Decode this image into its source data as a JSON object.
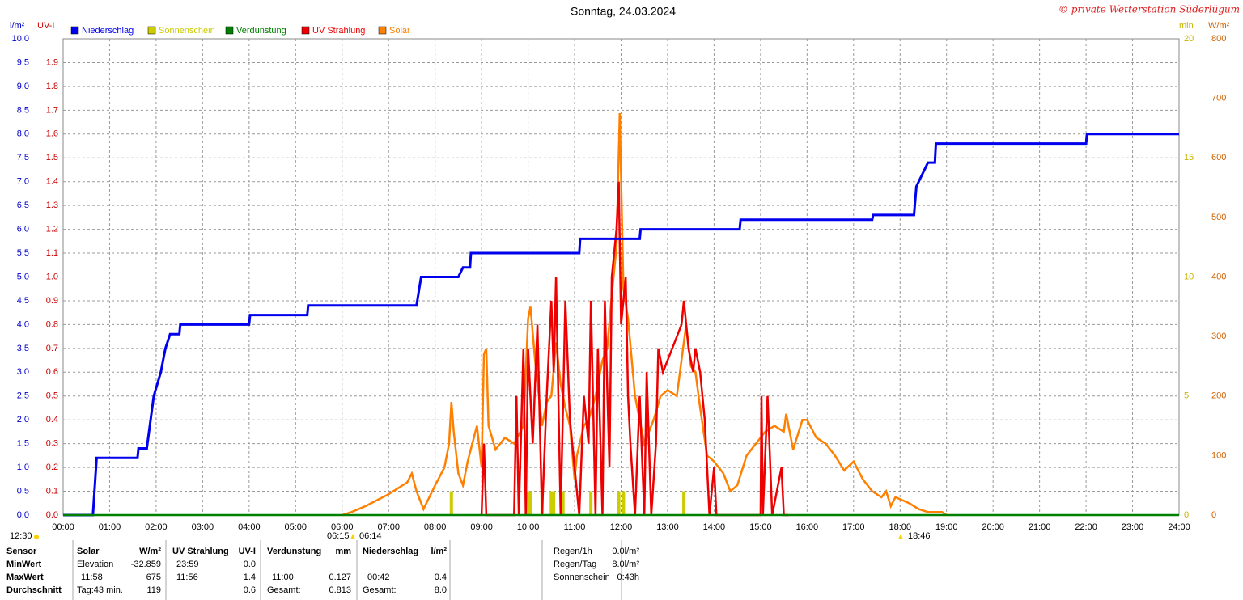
{
  "chart_data": {
    "type": "weather",
    "title": "Sonntag, 24.03.2024",
    "copyright": "© private Wetterstation Süderlügum",
    "xlim": [
      0,
      24
    ],
    "xticks": [
      {
        "value": 0,
        "label": "00:00"
      },
      {
        "value": 1,
        "label": "01:00"
      },
      {
        "value": 2,
        "label": "02:00"
      },
      {
        "value": 3,
        "label": "03:00"
      },
      {
        "value": 4,
        "label": "04:00"
      },
      {
        "value": 5,
        "label": "05:00"
      },
      {
        "value": 6,
        "label": "06:00"
      },
      {
        "value": 7,
        "label": "07:00"
      },
      {
        "value": 8,
        "label": "08:00"
      },
      {
        "value": 9,
        "label": "09:00"
      },
      {
        "value": 10,
        "label": "10:00"
      },
      {
        "value": 11,
        "label": "11:00"
      },
      {
        "value": 12,
        "label": "12:00"
      },
      {
        "value": 13,
        "label": "13:00"
      },
      {
        "value": 14,
        "label": "14:00"
      },
      {
        "value": 15,
        "label": "15:00"
      },
      {
        "value": 16,
        "label": "16:00"
      },
      {
        "value": 17,
        "label": "17:00"
      },
      {
        "value": 18,
        "label": "18:00"
      },
      {
        "value": 19,
        "label": "19:00"
      },
      {
        "value": 20,
        "label": "20:00"
      },
      {
        "value": 21,
        "label": "21:00"
      },
      {
        "value": 22,
        "label": "22:00"
      },
      {
        "value": 23,
        "label": "23:00"
      },
      {
        "value": 24,
        "label": "24:00"
      }
    ],
    "ylabel": "l/m²",
    "ylim": [
      0,
      10
    ],
    "yticks": [
      {
        "value": 0,
        "label": "0.0"
      },
      0.5,
      {
        "value": 1,
        "label": "1.0"
      },
      1.5,
      {
        "value": 2,
        "label": "2.0"
      },
      2.5,
      {
        "value": 3,
        "label": "3.0"
      },
      3.5,
      {
        "value": 4,
        "label": "4.0"
      },
      4.5,
      {
        "value": 5,
        "label": "5.0"
      },
      5.5,
      {
        "value": 6,
        "label": "6.0"
      },
      6.5,
      {
        "value": 7,
        "label": "7.0"
      },
      7.5,
      {
        "value": 8,
        "label": "8.0"
      },
      8.5,
      {
        "value": 9,
        "label": "9.0"
      },
      9.5,
      {
        "value": 10,
        "label": "10.0"
      }
    ],
    "uvlabel": "UV-I",
    "uvlim": [
      0,
      2
    ],
    "uvticks": [
      {
        "value": 0,
        "label": "0.0"
      },
      0.1,
      0.2,
      0.3,
      0.4,
      0.5,
      0.6,
      0.7,
      0.8,
      0.9,
      {
        "value": 1,
        "label": "1.0"
      },
      1.1,
      1.2,
      1.3,
      1.4,
      1.5,
      1.6,
      1.7,
      1.8,
      1.9
    ],
    "y2label": "min",
    "y2lim": [
      0,
      20
    ],
    "y2ticks": [
      0,
      5,
      10,
      15,
      20
    ],
    "y3label": "W/m²",
    "y3lim": [
      0,
      800
    ],
    "y3ticks": [
      0,
      100,
      200,
      300,
      400,
      500,
      600,
      700,
      800
    ],
    "grid": true,
    "series": [
      {
        "name": "Niederschlag",
        "color": "#0000ee",
        "axis": "y",
        "style": "line",
        "x": [
          0,
          0.64,
          0.72,
          1.6,
          1.62,
          1.78,
          1.8,
          1.95,
          2.1,
          2.2,
          2.3,
          2.5,
          2.52,
          4.0,
          4.02,
          5.25,
          5.27,
          7.6,
          7.7,
          8.5,
          8.6,
          8.75,
          8.77,
          11.1,
          11.12,
          12.4,
          12.42,
          14.55,
          14.57,
          17.4,
          17.42,
          18.3,
          18.35,
          18.5,
          18.6,
          18.75,
          18.77,
          22.0,
          22.02,
          24
        ],
        "values": [
          0,
          0,
          1.2,
          1.2,
          1.4,
          1.4,
          1.4,
          2.5,
          3.0,
          3.5,
          3.8,
          3.8,
          4.0,
          4.0,
          4.2,
          4.2,
          4.4,
          4.4,
          5.0,
          5.0,
          5.2,
          5.2,
          5.5,
          5.5,
          5.8,
          5.8,
          6.0,
          6.0,
          6.2,
          6.2,
          6.3,
          6.3,
          6.9,
          7.2,
          7.4,
          7.4,
          7.8,
          7.8,
          8.0,
          8.0
        ]
      },
      {
        "name": "Sonnenschein",
        "color": "#cccc00",
        "axis": "y2",
        "style": "bar",
        "x": [
          8.35,
          10.0,
          10.05,
          10.3,
          10.5,
          10.55,
          10.75,
          11.35,
          11.95,
          12.05,
          13.35
        ],
        "values": [
          1,
          1,
          1,
          1,
          1,
          1,
          1,
          1,
          1,
          1,
          1
        ]
      },
      {
        "name": "Verdunstung",
        "color": "#008000",
        "axis": "y",
        "style": "line",
        "x": [
          0,
          24
        ],
        "values": [
          0,
          0
        ]
      },
      {
        "name": "UV Strahlung",
        "color": "#ee0000",
        "axis": "uv",
        "style": "line",
        "x": [
          9.0,
          9.05,
          9.1,
          9.7,
          9.75,
          9.8,
          9.9,
          9.95,
          10.0,
          10.1,
          10.2,
          10.3,
          10.4,
          10.5,
          10.55,
          10.6,
          10.7,
          10.8,
          10.9,
          11.0,
          11.1,
          11.2,
          11.3,
          11.35,
          11.45,
          11.5,
          11.6,
          11.65,
          11.75,
          11.8,
          11.9,
          11.95,
          12.0,
          12.1,
          12.15,
          12.2,
          12.3,
          12.4,
          12.5,
          12.55,
          12.65,
          12.75,
          12.8,
          12.9,
          13.1,
          13.3,
          13.35,
          13.45,
          13.55,
          13.6,
          13.7,
          13.8,
          13.9,
          14.0,
          14.05,
          15.0,
          15.02,
          15.05,
          15.15,
          15.25,
          15.45,
          15.5,
          15.6
        ],
        "values": [
          0,
          0.3,
          0,
          0,
          0.5,
          0,
          0.7,
          0,
          0.7,
          0.3,
          0.8,
          0,
          0.5,
          0.9,
          0.6,
          1.0,
          0,
          0.9,
          0.4,
          0.2,
          0,
          0.5,
          0.3,
          0.9,
          0,
          0.7,
          0,
          0.9,
          0.2,
          1.0,
          1.2,
          1.4,
          0.8,
          1.0,
          0.5,
          0.3,
          0,
          0.5,
          0,
          0.6,
          0,
          0.3,
          0.7,
          0.6,
          0.7,
          0.8,
          0.9,
          0.7,
          0.6,
          0.7,
          0.6,
          0.4,
          0,
          0.2,
          0,
          0,
          0.5,
          0,
          0.5,
          0,
          0.2,
          0,
          0
        ]
      },
      {
        "name": "Solar",
        "color": "#ff8000",
        "axis": "y3",
        "style": "line",
        "x": [
          6.0,
          6.2,
          6.5,
          7.0,
          7.4,
          7.5,
          7.6,
          7.75,
          8.0,
          8.2,
          8.3,
          8.35,
          8.4,
          8.5,
          8.6,
          8.7,
          8.9,
          9.0,
          9.05,
          9.1,
          9.15,
          9.3,
          9.5,
          9.7,
          9.9,
          10.0,
          10.05,
          10.15,
          10.3,
          10.4,
          10.5,
          10.6,
          10.7,
          10.8,
          10.9,
          11.0,
          11.05,
          11.2,
          11.3,
          11.45,
          11.6,
          11.7,
          11.8,
          11.9,
          11.97,
          12.05,
          12.15,
          12.3,
          12.5,
          12.7,
          12.85,
          13.0,
          13.2,
          13.4,
          13.5,
          13.6,
          13.7,
          13.85,
          14.0,
          14.2,
          14.35,
          14.5,
          14.7,
          14.9,
          15.1,
          15.3,
          15.5,
          15.55,
          15.7,
          15.9,
          16.0,
          16.2,
          16.4,
          16.6,
          16.8,
          17.0,
          17.2,
          17.4,
          17.6,
          17.7,
          17.8,
          17.9,
          18.2,
          18.4,
          18.6,
          18.9,
          19.0
        ],
        "values": [
          0,
          5,
          15,
          35,
          55,
          70,
          40,
          10,
          50,
          80,
          120,
          190,
          140,
          70,
          50,
          90,
          150,
          80,
          270,
          280,
          150,
          110,
          130,
          120,
          150,
          330,
          350,
          260,
          150,
          190,
          200,
          290,
          220,
          180,
          150,
          60,
          100,
          150,
          160,
          200,
          260,
          280,
          370,
          450,
          675,
          380,
          330,
          200,
          120,
          160,
          200,
          210,
          200,
          320,
          250,
          240,
          180,
          100,
          90,
          70,
          40,
          50,
          100,
          120,
          140,
          150,
          140,
          170,
          110,
          160,
          160,
          130,
          120,
          100,
          75,
          90,
          60,
          40,
          30,
          40,
          15,
          30,
          20,
          10,
          5,
          5,
          0
        ]
      }
    ],
    "annotations": [
      "12:30",
      "06:15",
      "06:14",
      "18:46"
    ]
  },
  "stats": {
    "header": {
      "label": "Sensor",
      "solar_time": "Solar",
      "solar": "W/m²",
      "uv_time": "UV Strahlung",
      "uv": "UV-I",
      "ev_time": "Verdunstung",
      "ev": "mm",
      "rain_time": "Niederschlag",
      "rain": "l/m²"
    },
    "rows": [
      {
        "label": "MinWert",
        "solar_time": "Elevation",
        "solar": "-32.859",
        "uv_time": "23:59",
        "uv": "0.0"
      },
      {
        "label": "MaxWert",
        "solar_time": "11:58",
        "solar": "675",
        "uv_time": "11:56",
        "uv": "1.4",
        "ev_time": "11:00",
        "ev": "0.127",
        "rain_time": "00:42",
        "rain": "0.4"
      },
      {
        "label": "Durchschnitt",
        "solar_time": "Tag:43 min.",
        "solar": "119",
        "uv": "0.6",
        "ev_time": "Gesamt:",
        "ev": "0.813",
        "rain_time": "Gesamt:",
        "rain": "8.0"
      }
    ],
    "summary": [
      {
        "label": "Regen/1h",
        "value": "0.0l/m²"
      },
      {
        "label": "Regen/Tag",
        "value": "8.0l/m²"
      },
      {
        "label": "Sonnenschein",
        "value": "0:43h"
      }
    ]
  }
}
